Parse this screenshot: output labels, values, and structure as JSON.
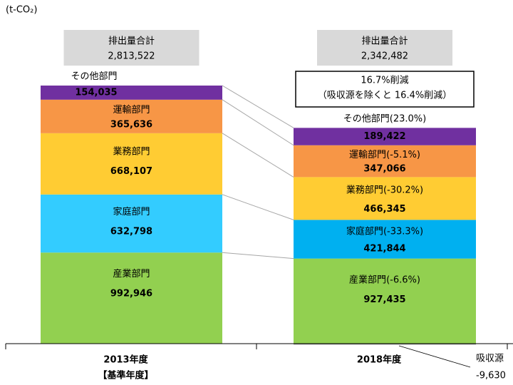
{
  "chart_data": {
    "type": "stacked-bar",
    "unit_label": "(t-CO₂)",
    "categories": [
      "2013年度",
      "2018年度"
    ],
    "category_notes": [
      "【基準年度】",
      null
    ],
    "ylim": [
      0,
      3000000
    ],
    "series": [
      {
        "name": "産業部門",
        "change_label": "(-6.6%)",
        "colors": [
          "#92d050",
          "#92d050"
        ],
        "values": [
          992946,
          927435
        ],
        "value_labels": [
          "992,946",
          "927,435"
        ]
      },
      {
        "name": "家庭部門",
        "change_label": "(-33.3%)",
        "colors": [
          "#33ccff",
          "#00b0f0"
        ],
        "values": [
          632798,
          421844
        ],
        "value_labels": [
          "632,798",
          "421,844"
        ]
      },
      {
        "name": "業務部門",
        "change_label": "(-30.2%)",
        "colors": [
          "#ffcc33",
          "#ffcc33"
        ],
        "values": [
          668107,
          466345
        ],
        "value_labels": [
          "668,107",
          "466,345"
        ]
      },
      {
        "name": "運輸部門",
        "change_label": "(-5.1%)",
        "colors": [
          "#f79646",
          "#f79646"
        ],
        "values": [
          365636,
          347066
        ],
        "value_labels": [
          "365,636",
          "347,066"
        ]
      },
      {
        "name": "その他部門",
        "change_label": "(23.0%)",
        "colors": [
          "#7030a0",
          "#7030a0"
        ],
        "values": [
          154035,
          189422
        ],
        "value_labels": [
          "154,035",
          "189,422"
        ]
      }
    ],
    "totals": {
      "label": "排出量合計",
      "values": [
        2813522,
        2342482
      ],
      "value_labels": [
        "2,813,522",
        "2,342,482"
      ]
    },
    "reduction": {
      "lines": [
        "16.7%削減",
        "（吸収源を除くと 16.4%削減）"
      ]
    },
    "sink": {
      "name": "吸収源",
      "value": -9630,
      "value_label": "-9,630",
      "color": "#808080"
    }
  }
}
